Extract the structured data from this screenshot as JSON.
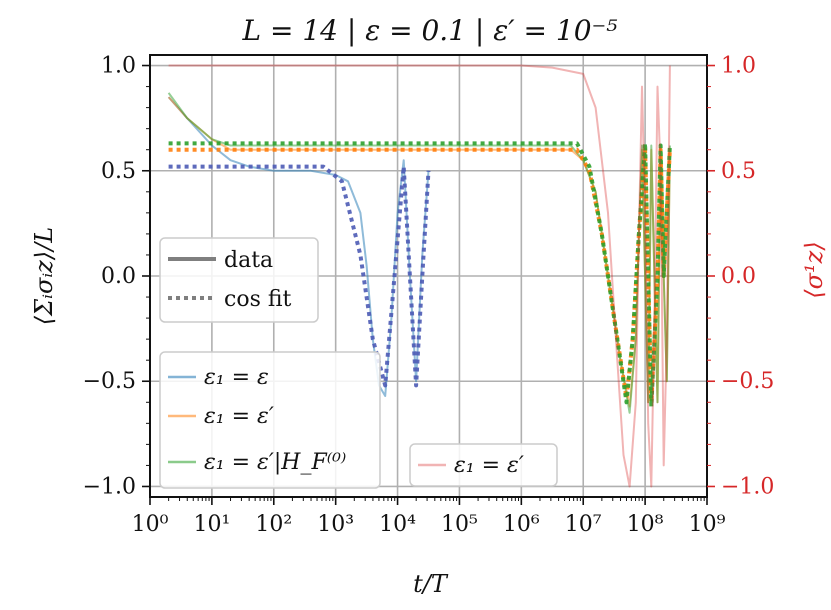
{
  "chart_data": {
    "type": "line",
    "title": "L = 14 | ε = 0.1 | ε′ = 10⁻⁵",
    "xlabel": "t/T",
    "ylabel": "⟨Σᵢσᵢz⟩/L",
    "ylabel_right": "⟨σ¹z⟩",
    "xscale": "log",
    "xlim_exp": [
      0,
      9
    ],
    "x_tick_labels": [
      "10⁰",
      "10¹",
      "10²",
      "10³",
      "10⁴",
      "10⁵",
      "10⁶",
      "10⁷",
      "10⁸",
      "10⁹"
    ],
    "ylim": [
      -1.05,
      1.05
    ],
    "y_ticks": [
      1.0,
      0.5,
      0.0,
      -0.5,
      -1.0
    ],
    "y_tick_labels": [
      "1.0",
      "0.5",
      "0.0",
      "−0.5",
      "−1.0"
    ],
    "y_right_ticks": [
      1.0,
      0.5,
      0.0,
      -0.5,
      -1.0
    ],
    "y_right_tick_labels": [
      "1.0",
      "0.5",
      "0.0",
      "−0.5",
      "−1.0"
    ],
    "grid": true,
    "colors": {
      "blue": "#1f77b4",
      "orange": "#ff7f0e",
      "green": "#2ca02c",
      "red": "#d62728",
      "fitBlue": "#4c5bb5"
    },
    "style_legend": {
      "solid": "data",
      "dotted": "cos fit"
    },
    "legend": {
      "blue": "ε₁ = ε",
      "orange": "ε₁ = ε′",
      "green": "ε₁ = ε′|H_F⁽⁰⁾",
      "red": "ε₁ = ε′"
    },
    "series": [
      {
        "name": "ε₁ = ε (data)",
        "color": "blue",
        "axis": "left",
        "style": "solid",
        "x_log10": [
          0.3,
          0.6,
          1.0,
          1.3,
          1.6,
          2.0,
          2.3,
          2.6,
          3.0,
          3.2,
          3.4,
          3.5,
          3.6,
          3.7,
          3.8,
          3.9,
          4.0,
          4.1,
          4.2,
          4.3,
          4.4,
          4.5
        ],
        "y": [
          0.85,
          0.75,
          0.62,
          0.55,
          0.52,
          0.5,
          0.5,
          0.5,
          0.48,
          0.45,
          0.3,
          0.05,
          -0.3,
          -0.52,
          -0.57,
          -0.2,
          0.3,
          0.55,
          0.0,
          -0.5,
          0.1,
          0.5
        ]
      },
      {
        "name": "ε₁ = ε (cos fit)",
        "color": "fitBlue",
        "axis": "left",
        "style": "dotted",
        "x_log10": [
          0.3,
          2.8,
          3.1,
          3.4,
          3.6,
          3.8,
          3.95,
          4.1,
          4.2,
          4.3,
          4.4,
          4.5
        ],
        "y": [
          0.52,
          0.52,
          0.45,
          0.1,
          -0.3,
          -0.52,
          0.0,
          0.52,
          0.0,
          -0.52,
          0.0,
          0.5
        ]
      },
      {
        "name": "ε₁ = ε′ (data)",
        "color": "orange",
        "axis": "left",
        "style": "solid",
        "x_log10": [
          0.3,
          0.6,
          1.0,
          1.3,
          1.6,
          2.0,
          3.0,
          4.0,
          5.0,
          6.0,
          6.8,
          7.0,
          7.2,
          7.4,
          7.6,
          7.75,
          7.85,
          7.9,
          7.95,
          8.0,
          8.05,
          8.1,
          8.15,
          8.2,
          8.25,
          8.3,
          8.35,
          8.4
        ],
        "y": [
          0.85,
          0.75,
          0.65,
          0.6,
          0.6,
          0.6,
          0.6,
          0.6,
          0.6,
          0.6,
          0.6,
          0.55,
          0.4,
          0.0,
          -0.4,
          -0.62,
          -0.3,
          0.2,
          0.6,
          0.0,
          -0.6,
          0.6,
          0.0,
          -0.6,
          0.6,
          0.0,
          -0.5,
          0.6
        ]
      },
      {
        "name": "ε₁ = ε′|H_F⁽⁰⁾ (data)",
        "color": "green",
        "axis": "left",
        "style": "solid",
        "x_log10": [
          0.3,
          0.6,
          1.0,
          1.3,
          1.6,
          2.0,
          3.0,
          4.0,
          5.0,
          6.0,
          6.8,
          7.0,
          7.2,
          7.4,
          7.6,
          7.75,
          7.85,
          7.9,
          7.95,
          8.0,
          8.05,
          8.1,
          8.15,
          8.2,
          8.25,
          8.3,
          8.35,
          8.4
        ],
        "y": [
          0.87,
          0.75,
          0.65,
          0.62,
          0.62,
          0.62,
          0.62,
          0.62,
          0.62,
          0.62,
          0.62,
          0.55,
          0.4,
          0.0,
          -0.4,
          -0.65,
          -0.3,
          0.2,
          0.62,
          0.0,
          -0.6,
          0.62,
          0.0,
          -0.6,
          0.62,
          0.0,
          -0.5,
          0.62
        ]
      },
      {
        "name": "ε₁ = ε′ (cos fit)",
        "color": "orange",
        "axis": "left",
        "style": "dotted",
        "x_log10": [
          0.3,
          6.9,
          7.1,
          7.3,
          7.5,
          7.7,
          7.8,
          7.9,
          8.0,
          8.05,
          8.1,
          8.2,
          8.25,
          8.3,
          8.4
        ],
        "y": [
          0.6,
          0.6,
          0.5,
          0.2,
          -0.2,
          -0.58,
          -0.3,
          0.2,
          0.6,
          0.0,
          -0.6,
          0.0,
          0.6,
          0.0,
          0.6
        ]
      },
      {
        "name": "ε₁ = ε′|H_F⁽⁰⁾ (cos fit)",
        "color": "green",
        "axis": "left",
        "style": "dotted",
        "x_log10": [
          0.3,
          6.9,
          7.1,
          7.3,
          7.5,
          7.7,
          7.8,
          7.9,
          8.0,
          8.05,
          8.1,
          8.2,
          8.25,
          8.3,
          8.4
        ],
        "y": [
          0.63,
          0.63,
          0.52,
          0.2,
          -0.2,
          -0.6,
          -0.3,
          0.2,
          0.63,
          0.0,
          -0.62,
          0.0,
          0.62,
          0.0,
          0.62
        ]
      },
      {
        "name": "ε₁ = ε′ (⟨σ¹z⟩)",
        "color": "red",
        "axis": "right",
        "style": "solid",
        "x_log10": [
          0.3,
          1.0,
          2.0,
          3.0,
          4.0,
          5.0,
          6.0,
          6.5,
          7.0,
          7.2,
          7.4,
          7.55,
          7.65,
          7.75,
          7.85,
          7.9,
          7.95,
          8.0,
          8.05,
          8.1,
          8.15,
          8.2,
          8.25,
          8.3,
          8.35,
          8.4
        ],
        "y": [
          1.0,
          1.0,
          1.0,
          1.0,
          1.0,
          1.0,
          1.0,
          0.99,
          0.96,
          0.8,
          0.3,
          -0.4,
          -0.85,
          -1.0,
          -0.6,
          0.2,
          0.9,
          0.3,
          -0.7,
          -1.0,
          -0.2,
          0.9,
          0.5,
          -0.9,
          -0.3,
          1.0
        ]
      }
    ]
  }
}
